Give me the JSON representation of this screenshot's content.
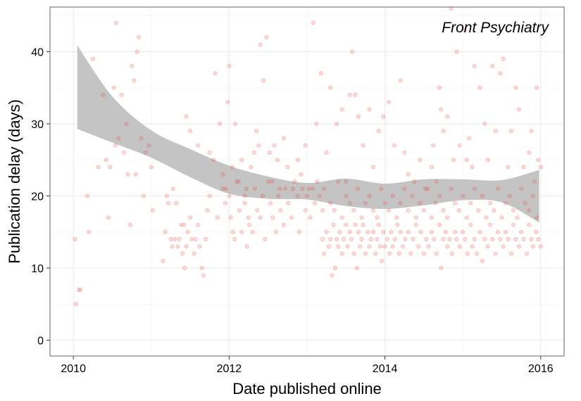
{
  "chart_data": {
    "type": "scatter",
    "title": "",
    "annotation": "Front Psychiatry",
    "xlabel": "Date published online",
    "ylabel": "Publication delay (days)",
    "xlim": [
      2009.7,
      2016.3
    ],
    "ylim": [
      -2.2,
      46.2
    ],
    "xticks": [
      2010,
      2012,
      2014,
      2016
    ],
    "xtick_labels": [
      "2010",
      "2012",
      "2014",
      "2016"
    ],
    "yticks": [
      0,
      10,
      20,
      30,
      40
    ],
    "ytick_labels": [
      "0",
      "10",
      "20",
      "30",
      "40"
    ],
    "grid": true,
    "colors": {
      "points": "#e8473f",
      "ribbon": "#c4c4c4",
      "frame": "#7f7f7f",
      "grid": "#ebebeb"
    },
    "points": [
      [
        2010.02,
        14
      ],
      [
        2010.03,
        5
      ],
      [
        2010.07,
        7
      ],
      [
        2010.09,
        7
      ],
      [
        2010.18,
        20
      ],
      [
        2010.2,
        15
      ],
      [
        2010.25,
        39
      ],
      [
        2010.32,
        24
      ],
      [
        2010.38,
        34
      ],
      [
        2010.42,
        25
      ],
      [
        2010.45,
        17
      ],
      [
        2010.47,
        24
      ],
      [
        2010.52,
        35
      ],
      [
        2010.54,
        27
      ],
      [
        2010.55,
        44
      ],
      [
        2010.58,
        28
      ],
      [
        2010.62,
        34
      ],
      [
        2010.65,
        26
      ],
      [
        2010.68,
        30
      ],
      [
        2010.7,
        23
      ],
      [
        2010.73,
        16
      ],
      [
        2010.75,
        38
      ],
      [
        2010.78,
        36
      ],
      [
        2010.8,
        23
      ],
      [
        2010.82,
        40
      ],
      [
        2010.84,
        42
      ],
      [
        2010.87,
        28
      ],
      [
        2010.9,
        20
      ],
      [
        2010.93,
        26
      ],
      [
        2010.97,
        27
      ],
      [
        2011.0,
        24
      ],
      [
        2011.02,
        18
      ],
      [
        2011.15,
        11
      ],
      [
        2011.18,
        15
      ],
      [
        2011.2,
        20
      ],
      [
        2011.22,
        19
      ],
      [
        2011.25,
        14
      ],
      [
        2011.27,
        13
      ],
      [
        2011.28,
        21
      ],
      [
        2011.3,
        14
      ],
      [
        2011.32,
        19
      ],
      [
        2011.34,
        13
      ],
      [
        2011.36,
        14
      ],
      [
        2011.38,
        16
      ],
      [
        2011.4,
        12
      ],
      [
        2011.42,
        16
      ],
      [
        2011.43,
        10
      ],
      [
        2011.45,
        13
      ],
      [
        2011.47,
        15
      ],
      [
        2011.5,
        17
      ],
      [
        2011.52,
        14
      ],
      [
        2011.55,
        12
      ],
      [
        2011.57,
        14
      ],
      [
        2011.6,
        16
      ],
      [
        2011.62,
        13
      ],
      [
        2011.65,
        10
      ],
      [
        2011.67,
        9
      ],
      [
        2011.7,
        14
      ],
      [
        2011.72,
        18
      ],
      [
        2011.75,
        20
      ],
      [
        2011.8,
        25
      ],
      [
        2011.85,
        17
      ],
      [
        2011.45,
        31
      ],
      [
        2011.5,
        29
      ],
      [
        2011.6,
        27
      ],
      [
        2011.75,
        26
      ],
      [
        2011.82,
        37
      ],
      [
        2011.88,
        30
      ],
      [
        2011.92,
        23
      ],
      [
        2011.96,
        21
      ],
      [
        2011.98,
        33
      ],
      [
        2012.0,
        38
      ],
      [
        2012.04,
        24
      ],
      [
        2012.08,
        30
      ],
      [
        2012.12,
        22
      ],
      [
        2012.16,
        25
      ],
      [
        2012.2,
        19
      ],
      [
        2012.22,
        21
      ],
      [
        2012.25,
        17
      ],
      [
        2012.28,
        24
      ],
      [
        2012.32,
        26
      ],
      [
        2012.35,
        29
      ],
      [
        2012.38,
        27
      ],
      [
        2012.4,
        41
      ],
      [
        2012.44,
        36
      ],
      [
        2012.48,
        42
      ],
      [
        2012.52,
        26
      ],
      [
        2012.55,
        22
      ],
      [
        2012.58,
        27
      ],
      [
        2012.62,
        25
      ],
      [
        2012.65,
        21
      ],
      [
        2012.7,
        28
      ],
      [
        2012.75,
        24
      ],
      [
        2012.82,
        21
      ],
      [
        2012.88,
        25
      ],
      [
        2012.92,
        23
      ],
      [
        2012.98,
        27
      ],
      [
        2013.02,
        21
      ],
      [
        2013.08,
        44
      ],
      [
        2013.12,
        30
      ],
      [
        2013.18,
        37
      ],
      [
        2013.25,
        26
      ],
      [
        2013.3,
        35
      ],
      [
        2013.38,
        30
      ],
      [
        2013.45,
        32
      ],
      [
        2013.5,
        22
      ],
      [
        2013.55,
        34
      ],
      [
        2013.58,
        40
      ],
      [
        2013.62,
        34
      ],
      [
        2013.66,
        31
      ],
      [
        2013.72,
        27
      ],
      [
        2013.8,
        32
      ],
      [
        2013.85,
        24
      ],
      [
        2013.92,
        29
      ],
      [
        2013.98,
        31
      ],
      [
        2014.05,
        33
      ],
      [
        2014.12,
        27
      ],
      [
        2014.2,
        36
      ],
      [
        2014.25,
        26
      ],
      [
        2014.3,
        23
      ],
      [
        2014.38,
        22
      ],
      [
        2014.45,
        25
      ],
      [
        2014.52,
        21
      ],
      [
        2014.6,
        24
      ],
      [
        2014.62,
        27
      ],
      [
        2014.66,
        22
      ],
      [
        2014.7,
        35
      ],
      [
        2014.72,
        32
      ],
      [
        2014.75,
        29
      ],
      [
        2014.8,
        31
      ],
      [
        2014.85,
        46
      ],
      [
        2014.88,
        25
      ],
      [
        2014.92,
        40
      ],
      [
        2014.96,
        27
      ],
      [
        2015.02,
        43
      ],
      [
        2015.05,
        25
      ],
      [
        2015.08,
        28
      ],
      [
        2015.12,
        24
      ],
      [
        2015.15,
        38
      ],
      [
        2015.22,
        35
      ],
      [
        2015.28,
        30
      ],
      [
        2015.32,
        25
      ],
      [
        2015.38,
        38
      ],
      [
        2015.42,
        29
      ],
      [
        2015.48,
        37
      ],
      [
        2015.52,
        39
      ],
      [
        2015.58,
        24
      ],
      [
        2015.62,
        29
      ],
      [
        2015.68,
        35
      ],
      [
        2015.72,
        32
      ],
      [
        2015.78,
        24
      ],
      [
        2015.85,
        26
      ],
      [
        2015.88,
        29
      ],
      [
        2015.92,
        22
      ],
      [
        2015.97,
        25
      ],
      [
        2016.0,
        24
      ],
      [
        2015.95,
        35
      ],
      [
        2011.92,
        21
      ],
      [
        2011.95,
        19
      ],
      [
        2012.0,
        20
      ],
      [
        2012.02,
        17
      ],
      [
        2012.05,
        15
      ],
      [
        2012.07,
        14
      ],
      [
        2012.1,
        22
      ],
      [
        2012.13,
        18
      ],
      [
        2012.16,
        15
      ],
      [
        2012.2,
        20
      ],
      [
        2012.23,
        13
      ],
      [
        2012.26,
        16
      ],
      [
        2012.3,
        15
      ],
      [
        2012.33,
        21
      ],
      [
        2012.36,
        18
      ],
      [
        2012.4,
        17
      ],
      [
        2012.43,
        20
      ],
      [
        2012.46,
        14
      ],
      [
        2012.5,
        22
      ],
      [
        2012.53,
        19
      ],
      [
        2012.56,
        17
      ],
      [
        2012.6,
        15
      ],
      [
        2012.63,
        20
      ],
      [
        2012.66,
        18
      ],
      [
        2012.7,
        16
      ],
      [
        2012.72,
        21
      ],
      [
        2012.76,
        19
      ],
      [
        2012.8,
        17
      ],
      [
        2012.84,
        22
      ],
      [
        2012.88,
        20
      ],
      [
        2012.9,
        15
      ],
      [
        2012.94,
        21
      ],
      [
        2012.98,
        18
      ],
      [
        2013.0,
        20
      ],
      [
        2013.04,
        17
      ],
      [
        2013.07,
        21
      ],
      [
        2013.1,
        19
      ],
      [
        2013.13,
        22
      ],
      [
        2013.16,
        20
      ],
      [
        2013.2,
        18
      ],
      [
        2013.22,
        21
      ],
      [
        2013.2,
        14
      ],
      [
        2013.22,
        12
      ],
      [
        2013.25,
        15
      ],
      [
        2013.28,
        13
      ],
      [
        2013.3,
        14
      ],
      [
        2013.32,
        9
      ],
      [
        2013.34,
        16
      ],
      [
        2013.36,
        10
      ],
      [
        2013.38,
        14
      ],
      [
        2013.4,
        13
      ],
      [
        2013.42,
        15
      ],
      [
        2013.45,
        12
      ],
      [
        2013.47,
        14
      ],
      [
        2013.5,
        16
      ],
      [
        2013.52,
        13
      ],
      [
        2013.55,
        15
      ],
      [
        2013.57,
        14
      ],
      [
        2013.6,
        12
      ],
      [
        2013.62,
        16
      ],
      [
        2013.64,
        10
      ],
      [
        2013.66,
        15
      ],
      [
        2013.68,
        13
      ],
      [
        2013.7,
        14
      ],
      [
        2013.72,
        16
      ],
      [
        2013.75,
        12
      ],
      [
        2013.78,
        15
      ],
      [
        2013.8,
        13
      ],
      [
        2013.82,
        14
      ],
      [
        2013.85,
        15
      ],
      [
        2013.88,
        12
      ],
      [
        2013.9,
        14
      ],
      [
        2013.92,
        16
      ],
      [
        2013.94,
        13
      ],
      [
        2013.96,
        11
      ],
      [
        2013.98,
        15
      ],
      [
        2014.0,
        13
      ],
      [
        2014.03,
        14
      ],
      [
        2014.06,
        12
      ],
      [
        2014.08,
        15
      ],
      [
        2014.1,
        13
      ],
      [
        2014.13,
        14
      ],
      [
        2014.16,
        16
      ],
      [
        2014.18,
        12
      ],
      [
        2014.2,
        15
      ],
      [
        2014.23,
        13
      ],
      [
        2014.26,
        14
      ],
      [
        2014.3,
        15
      ],
      [
        2014.33,
        12
      ],
      [
        2014.36,
        14
      ],
      [
        2014.4,
        16
      ],
      [
        2014.43,
        13
      ],
      [
        2014.46,
        15
      ],
      [
        2014.5,
        12
      ],
      [
        2014.53,
        14
      ],
      [
        2014.56,
        13
      ],
      [
        2014.6,
        15
      ],
      [
        2014.63,
        14
      ],
      [
        2014.66,
        12
      ],
      [
        2014.7,
        16
      ],
      [
        2014.72,
        10
      ],
      [
        2014.75,
        14
      ],
      [
        2014.78,
        15
      ],
      [
        2014.8,
        13
      ],
      [
        2014.83,
        14
      ],
      [
        2014.86,
        12
      ],
      [
        2014.9,
        15
      ],
      [
        2014.92,
        14
      ],
      [
        2014.96,
        13
      ],
      [
        2015.0,
        15
      ],
      [
        2015.03,
        14
      ],
      [
        2015.06,
        12
      ],
      [
        2015.1,
        16
      ],
      [
        2015.12,
        13
      ],
      [
        2015.15,
        14
      ],
      [
        2015.18,
        12
      ],
      [
        2015.22,
        15
      ],
      [
        2015.25,
        11
      ],
      [
        2015.28,
        14
      ],
      [
        2015.32,
        13
      ],
      [
        2015.35,
        16
      ],
      [
        2015.38,
        14
      ],
      [
        2015.42,
        12
      ],
      [
        2015.45,
        15
      ],
      [
        2015.48,
        14
      ],
      [
        2015.52,
        13
      ],
      [
        2015.55,
        15
      ],
      [
        2015.58,
        14
      ],
      [
        2015.62,
        12
      ],
      [
        2015.65,
        16
      ],
      [
        2015.68,
        14
      ],
      [
        2015.72,
        13
      ],
      [
        2015.75,
        15
      ],
      [
        2015.78,
        14
      ],
      [
        2015.82,
        12
      ],
      [
        2015.85,
        16
      ],
      [
        2015.88,
        14
      ],
      [
        2015.9,
        13
      ],
      [
        2015.94,
        15
      ],
      [
        2015.97,
        14
      ],
      [
        2016.0,
        13
      ],
      [
        2013.3,
        19
      ],
      [
        2013.35,
        18
      ],
      [
        2013.4,
        22
      ],
      [
        2013.45,
        17
      ],
      [
        2013.5,
        20
      ],
      [
        2013.55,
        19
      ],
      [
        2013.6,
        18
      ],
      [
        2013.65,
        21
      ],
      [
        2013.7,
        17
      ],
      [
        2013.75,
        19
      ],
      [
        2013.8,
        20
      ],
      [
        2013.85,
        18
      ],
      [
        2013.9,
        17
      ],
      [
        2013.95,
        21
      ],
      [
        2014.0,
        19
      ],
      [
        2014.05,
        18
      ],
      [
        2014.1,
        20
      ],
      [
        2014.15,
        17
      ],
      [
        2014.2,
        19
      ],
      [
        2014.25,
        21
      ],
      [
        2014.3,
        18
      ],
      [
        2014.35,
        20
      ],
      [
        2014.4,
        17
      ],
      [
        2014.45,
        19
      ],
      [
        2014.5,
        18
      ],
      [
        2014.55,
        21
      ],
      [
        2014.6,
        17
      ],
      [
        2014.65,
        19
      ],
      [
        2014.7,
        20
      ],
      [
        2014.75,
        18
      ],
      [
        2014.8,
        17
      ],
      [
        2014.85,
        21
      ],
      [
        2014.9,
        19
      ],
      [
        2014.95,
        18
      ],
      [
        2015.0,
        20
      ],
      [
        2015.05,
        17
      ],
      [
        2015.1,
        19
      ],
      [
        2015.15,
        21
      ],
      [
        2015.2,
        18
      ],
      [
        2015.25,
        20
      ],
      [
        2015.3,
        17
      ],
      [
        2015.35,
        19
      ],
      [
        2015.4,
        18
      ],
      [
        2015.45,
        21
      ],
      [
        2015.5,
        17
      ],
      [
        2015.55,
        19
      ],
      [
        2015.6,
        20
      ],
      [
        2015.65,
        18
      ],
      [
        2015.7,
        17
      ],
      [
        2015.75,
        21
      ],
      [
        2015.8,
        19
      ],
      [
        2015.85,
        18
      ],
      [
        2015.9,
        20
      ],
      [
        2015.95,
        17
      ]
    ],
    "smooth_ribbon": {
      "x": [
        2010.05,
        2010.5,
        2011.0,
        2011.5,
        2012.0,
        2012.5,
        2013.0,
        2013.5,
        2014.0,
        2014.5,
        2015.0,
        2015.5,
        2015.98
      ],
      "lower": [
        29.3,
        27.4,
        25.3,
        22.6,
        20.3,
        19.6,
        19.5,
        18.6,
        18.2,
        18.7,
        19.4,
        19.1,
        16.3
      ],
      "upper": [
        40.9,
        33.8,
        29.1,
        26.5,
        24.2,
        22.7,
        21.8,
        22.4,
        21.7,
        22.3,
        22.3,
        22.2,
        23.6
      ]
    }
  }
}
